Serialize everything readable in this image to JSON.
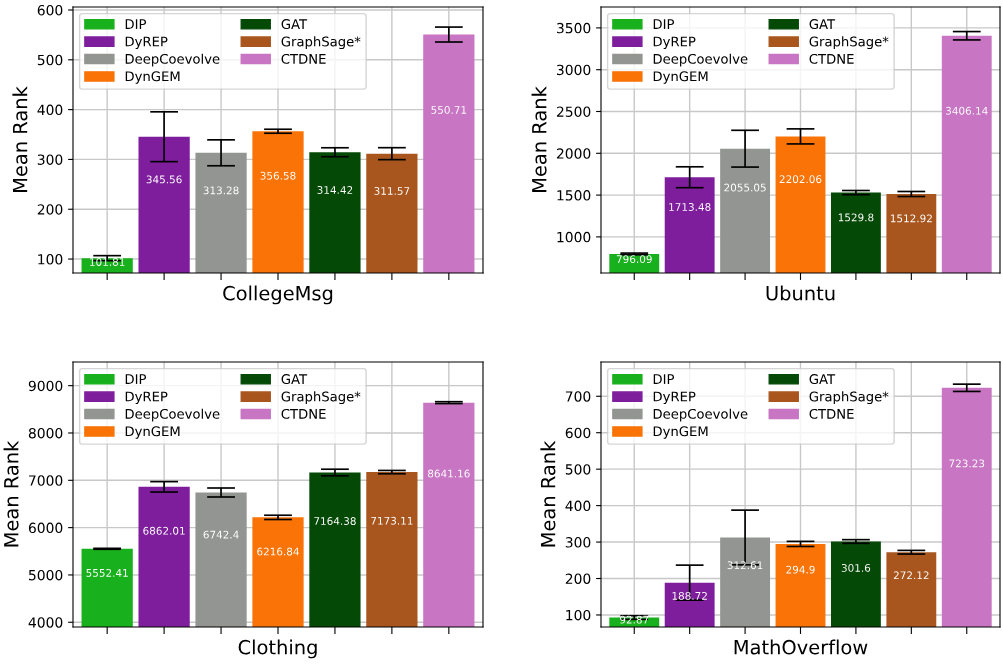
{
  "chart_data": [
    {
      "type": "bar",
      "xlabel": "CollegeMsg",
      "ylabel": "Mean Rank",
      "categories": [
        null,
        null,
        null,
        null,
        null,
        null,
        null
      ],
      "ylim": [
        72,
        606
      ],
      "yticks": [
        100,
        200,
        300,
        400,
        500,
        600
      ],
      "grid": true,
      "legend": "top left",
      "tick_labels": "y",
      "data_labels": true,
      "series": [
        {
          "name": "DIP",
          "color": "#19b01e",
          "values": [
            101.81,
            null,
            null,
            null,
            null,
            null,
            null
          ],
          "errors": [
            5,
            null,
            null,
            null,
            null,
            null,
            null
          ]
        },
        {
          "name": "DyREP",
          "color": "#7e1e9c",
          "values": [
            null,
            345.56,
            null,
            null,
            null,
            null,
            null
          ],
          "errors": [
            null,
            50,
            null,
            null,
            null,
            null,
            null
          ]
        },
        {
          "name": "DeepCoevolve",
          "color": "#929591",
          "values": [
            null,
            null,
            313.28,
            null,
            null,
            null,
            null
          ],
          "errors": [
            null,
            null,
            26,
            null,
            null,
            null,
            null
          ]
        },
        {
          "name": "DynGEM",
          "color": "#f97306",
          "values": [
            null,
            null,
            null,
            356.58,
            null,
            null,
            null
          ],
          "errors": [
            null,
            null,
            null,
            4,
            null,
            null,
            null
          ]
        },
        {
          "name": "GAT",
          "color": "#054907",
          "values": [
            null,
            null,
            null,
            null,
            314.42,
            null,
            null
          ],
          "errors": [
            null,
            null,
            null,
            null,
            9,
            null,
            null
          ]
        },
        {
          "name": "GraphSage*",
          "color": "#a9561e",
          "values": [
            null,
            null,
            null,
            null,
            null,
            311.57,
            null
          ],
          "errors": [
            null,
            null,
            null,
            null,
            null,
            12,
            null
          ]
        },
        {
          "name": "CTDNE",
          "color": "#c875c4",
          "values": [
            null,
            null,
            null,
            null,
            null,
            null,
            550.71
          ],
          "errors": [
            null,
            null,
            null,
            null,
            null,
            null,
            15
          ]
        }
      ]
    },
    {
      "type": "bar",
      "xlabel": "Ubuntu",
      "ylabel": "Mean Rank",
      "categories": [
        null,
        null,
        null,
        null,
        null,
        null,
        null
      ],
      "ylim": [
        568,
        3750
      ],
      "yticks": [
        1000,
        1500,
        2000,
        2500,
        3000,
        3500
      ],
      "grid": true,
      "legend": "top left",
      "tick_labels": "y",
      "data_labels": true,
      "series": [
        {
          "name": "DIP",
          "color": "#19b01e",
          "values": [
            796.09,
            null,
            null,
            null,
            null,
            null,
            null
          ],
          "errors": [
            10,
            null,
            null,
            null,
            null,
            null,
            null
          ]
        },
        {
          "name": "DyREP",
          "color": "#7e1e9c",
          "values": [
            null,
            1713.48,
            null,
            null,
            null,
            null,
            null
          ],
          "errors": [
            null,
            125,
            null,
            null,
            null,
            null,
            null
          ]
        },
        {
          "name": "DeepCoevolve",
          "color": "#929591",
          "values": [
            null,
            null,
            2055.05,
            null,
            null,
            null,
            null
          ],
          "errors": [
            null,
            null,
            220,
            null,
            null,
            null,
            null
          ]
        },
        {
          "name": "DynGEM",
          "color": "#f97306",
          "values": [
            null,
            null,
            null,
            2202.06,
            null,
            null,
            null
          ],
          "errors": [
            null,
            null,
            null,
            90,
            null,
            null,
            null
          ]
        },
        {
          "name": "GAT",
          "color": "#054907",
          "values": [
            null,
            null,
            null,
            null,
            1529.8,
            null,
            null
          ],
          "errors": [
            null,
            null,
            null,
            null,
            25,
            null,
            null
          ]
        },
        {
          "name": "GraphSage*",
          "color": "#a9561e",
          "values": [
            null,
            null,
            null,
            null,
            null,
            1512.92,
            null
          ],
          "errors": [
            null,
            null,
            null,
            null,
            null,
            30,
            null
          ]
        },
        {
          "name": "CTDNE",
          "color": "#c875c4",
          "values": [
            null,
            null,
            null,
            null,
            null,
            null,
            3406.14
          ],
          "errors": [
            null,
            null,
            null,
            null,
            null,
            null,
            50
          ]
        }
      ]
    },
    {
      "type": "bar",
      "xlabel": "Clothing",
      "ylabel": "Mean Rank",
      "categories": [
        null,
        null,
        null,
        null,
        null,
        null,
        null
      ],
      "ylim": [
        3900,
        9500
      ],
      "yticks": [
        4000,
        5000,
        6000,
        7000,
        8000,
        9000
      ],
      "grid": true,
      "legend": "top left",
      "tick_labels": "y",
      "data_labels": true,
      "series": [
        {
          "name": "DIP",
          "color": "#19b01e",
          "values": [
            5552.41,
            null,
            null,
            null,
            null,
            null,
            null
          ],
          "errors": [
            10,
            null,
            null,
            null,
            null,
            null,
            null
          ]
        },
        {
          "name": "DyREP",
          "color": "#7e1e9c",
          "values": [
            null,
            6862.01,
            null,
            null,
            null,
            null,
            null
          ],
          "errors": [
            null,
            110,
            null,
            null,
            null,
            null,
            null
          ]
        },
        {
          "name": "DeepCoevolve",
          "color": "#929591",
          "values": [
            null,
            null,
            6742.4,
            null,
            null,
            null,
            null
          ],
          "errors": [
            null,
            null,
            95,
            null,
            null,
            null,
            null
          ]
        },
        {
          "name": "DynGEM",
          "color": "#f97306",
          "values": [
            null,
            null,
            null,
            6216.84,
            null,
            null,
            null
          ],
          "errors": [
            null,
            null,
            null,
            45,
            null,
            null,
            null
          ]
        },
        {
          "name": "GAT",
          "color": "#054907",
          "values": [
            null,
            null,
            null,
            null,
            7164.38,
            null,
            null
          ],
          "errors": [
            null,
            null,
            null,
            null,
            70,
            null,
            null
          ]
        },
        {
          "name": "GraphSage*",
          "color": "#a9561e",
          "values": [
            null,
            null,
            null,
            null,
            null,
            7173.11,
            null
          ],
          "errors": [
            null,
            null,
            null,
            null,
            null,
            35,
            null
          ]
        },
        {
          "name": "CTDNE",
          "color": "#c875c4",
          "values": [
            null,
            null,
            null,
            null,
            null,
            null,
            8641.16
          ],
          "errors": [
            null,
            null,
            null,
            null,
            null,
            null,
            20
          ]
        }
      ]
    },
    {
      "type": "bar",
      "xlabel": "MathOverflow",
      "ylabel": "Mean Rank",
      "categories": [
        null,
        null,
        null,
        null,
        null,
        null,
        null
      ],
      "ylim": [
        67,
        794
      ],
      "yticks": [
        100,
        200,
        300,
        400,
        500,
        600,
        700
      ],
      "grid": true,
      "legend": "top left",
      "tick_labels": "y",
      "data_labels": true,
      "series": [
        {
          "name": "DIP",
          "color": "#19b01e",
          "values": [
            92.87,
            null,
            null,
            null,
            null,
            null,
            null
          ],
          "errors": [
            5,
            null,
            null,
            null,
            null,
            null,
            null
          ]
        },
        {
          "name": "DyREP",
          "color": "#7e1e9c",
          "values": [
            null,
            188.72,
            null,
            null,
            null,
            null,
            null
          ],
          "errors": [
            null,
            48,
            null,
            null,
            null,
            null,
            null
          ]
        },
        {
          "name": "DeepCoevolve",
          "color": "#929591",
          "values": [
            null,
            null,
            312.61,
            null,
            null,
            null,
            null
          ],
          "errors": [
            null,
            null,
            75,
            null,
            null,
            null,
            null
          ]
        },
        {
          "name": "DynGEM",
          "color": "#f97306",
          "values": [
            null,
            null,
            null,
            294.9,
            null,
            null,
            null
          ],
          "errors": [
            null,
            null,
            null,
            7,
            null,
            null,
            null
          ]
        },
        {
          "name": "GAT",
          "color": "#054907",
          "values": [
            null,
            null,
            null,
            null,
            301.6,
            null,
            null
          ],
          "errors": [
            null,
            null,
            null,
            null,
            5,
            null,
            null
          ]
        },
        {
          "name": "GraphSage*",
          "color": "#a9561e",
          "values": [
            null,
            null,
            null,
            null,
            null,
            272.12,
            null
          ],
          "errors": [
            null,
            null,
            null,
            null,
            null,
            5,
            null
          ]
        },
        {
          "name": "CTDNE",
          "color": "#c875c4",
          "values": [
            null,
            null,
            null,
            null,
            null,
            null,
            723.23
          ],
          "errors": [
            null,
            null,
            null,
            null,
            null,
            null,
            10
          ]
        }
      ]
    }
  ]
}
